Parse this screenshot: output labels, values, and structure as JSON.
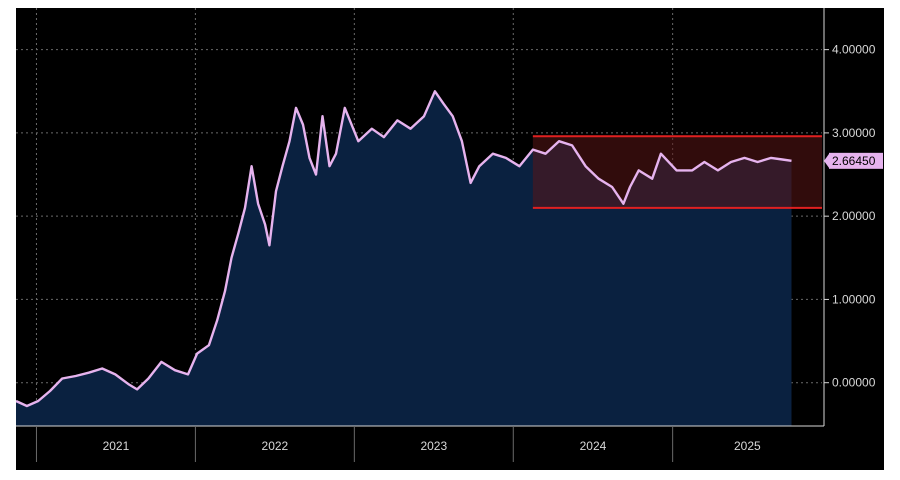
{
  "chart_data": {
    "type": "area",
    "title": "",
    "xlabel": "",
    "ylabel": "",
    "x_ticks": [
      "2021",
      "2022",
      "2023",
      "2024",
      "2025"
    ],
    "y_ticks": [
      {
        "value": 0,
        "label": "0.00000"
      },
      {
        "value": 1,
        "label": "1.00000"
      },
      {
        "value": 2,
        "label": "2.00000"
      },
      {
        "value": 3,
        "label": "3.00000"
      },
      {
        "value": 4,
        "label": "4.00000"
      }
    ],
    "xlim": [
      "2020-11-15",
      "2025-12-10"
    ],
    "ylim": [
      -0.52,
      4.5
    ],
    "grid": true,
    "last_value": 2.6645,
    "last_value_label": "2.66450",
    "range_band": {
      "low": 2.1,
      "high": 2.96,
      "start": "2024-02-15",
      "end": "2025-12-10"
    },
    "series": [
      {
        "points": [
          [
            "2020-11-15",
            -0.22
          ],
          [
            "2020-12-10",
            -0.28
          ],
          [
            "2021-01-05",
            -0.22
          ],
          [
            "2021-02-01",
            -0.1
          ],
          [
            "2021-03-01",
            0.05
          ],
          [
            "2021-04-01",
            0.08
          ],
          [
            "2021-05-01",
            0.12
          ],
          [
            "2021-06-01",
            0.17
          ],
          [
            "2021-07-01",
            0.1
          ],
          [
            "2021-08-01",
            -0.02
          ],
          [
            "2021-08-20",
            -0.08
          ],
          [
            "2021-09-15",
            0.05
          ],
          [
            "2021-10-15",
            0.25
          ],
          [
            "2021-11-15",
            0.15
          ],
          [
            "2021-12-15",
            0.1
          ],
          [
            "2022-01-05",
            0.35
          ],
          [
            "2022-02-01",
            0.45
          ],
          [
            "2022-02-20",
            0.75
          ],
          [
            "2022-03-10",
            1.1
          ],
          [
            "2022-03-25",
            1.5
          ],
          [
            "2022-04-10",
            1.8
          ],
          [
            "2022-04-25",
            2.1
          ],
          [
            "2022-05-10",
            2.6
          ],
          [
            "2022-05-25",
            2.15
          ],
          [
            "2022-06-10",
            1.9
          ],
          [
            "2022-06-20",
            1.65
          ],
          [
            "2022-07-05",
            2.3
          ],
          [
            "2022-07-20",
            2.6
          ],
          [
            "2022-08-05",
            2.9
          ],
          [
            "2022-08-20",
            3.3
          ],
          [
            "2022-09-05",
            3.1
          ],
          [
            "2022-09-20",
            2.7
          ],
          [
            "2022-10-05",
            2.5
          ],
          [
            "2022-10-20",
            3.2
          ],
          [
            "2022-11-05",
            2.6
          ],
          [
            "2022-11-20",
            2.75
          ],
          [
            "2022-12-10",
            3.3
          ],
          [
            "2023-01-10",
            2.9
          ],
          [
            "2023-02-10",
            3.05
          ],
          [
            "2023-03-10",
            2.95
          ],
          [
            "2023-04-10",
            3.15
          ],
          [
            "2023-05-10",
            3.05
          ],
          [
            "2023-06-10",
            3.2
          ],
          [
            "2023-07-05",
            3.5
          ],
          [
            "2023-07-25",
            3.35
          ],
          [
            "2023-08-15",
            3.2
          ],
          [
            "2023-09-05",
            2.9
          ],
          [
            "2023-09-25",
            2.4
          ],
          [
            "2023-10-15",
            2.6
          ],
          [
            "2023-11-15",
            2.75
          ],
          [
            "2023-12-15",
            2.7
          ],
          [
            "2024-01-15",
            2.6
          ],
          [
            "2024-02-15",
            2.8
          ],
          [
            "2024-03-15",
            2.75
          ],
          [
            "2024-04-15",
            2.9
          ],
          [
            "2024-05-15",
            2.85
          ],
          [
            "2024-06-15",
            2.6
          ],
          [
            "2024-07-15",
            2.45
          ],
          [
            "2024-08-15",
            2.35
          ],
          [
            "2024-09-10",
            2.15
          ],
          [
            "2024-09-25",
            2.35
          ],
          [
            "2024-10-15",
            2.55
          ],
          [
            "2024-11-15",
            2.45
          ],
          [
            "2024-12-05",
            2.75
          ],
          [
            "2025-01-10",
            2.55
          ],
          [
            "2025-02-15",
            2.55
          ],
          [
            "2025-03-15",
            2.65
          ],
          [
            "2025-04-15",
            2.55
          ],
          [
            "2025-05-15",
            2.65
          ],
          [
            "2025-06-15",
            2.7
          ],
          [
            "2025-07-15",
            2.65
          ],
          [
            "2025-08-15",
            2.7
          ],
          [
            "2025-09-10",
            2.68
          ],
          [
            "2025-10-01",
            2.6645
          ]
        ]
      }
    ]
  },
  "colors": {
    "background": "#000000",
    "area_fill": "#0a2140",
    "line": "#e6b3ee",
    "grid": "#6a6a6a",
    "band_fill": "#5a1616",
    "band_line": "#e02020",
    "axis_text": "#d8d8d8",
    "label_bg": "#e6b3ee"
  }
}
